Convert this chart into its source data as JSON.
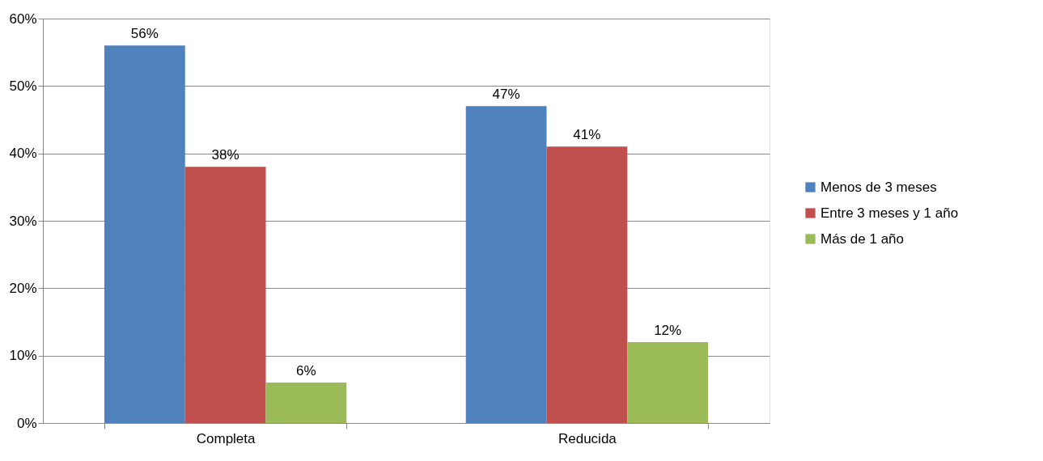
{
  "chart_data": {
    "type": "bar",
    "categories": [
      "Completa",
      "Reducida"
    ],
    "series": [
      {
        "name": "Menos de 3 meses",
        "color": "#4f81bd",
        "values": [
          56,
          47
        ],
        "value_labels": [
          "56%",
          "47%"
        ]
      },
      {
        "name": "Entre 3 meses y  1 año",
        "color": "#c0504d",
        "values": [
          38,
          41
        ],
        "value_labels": [
          "38%",
          "41%"
        ]
      },
      {
        "name": "Más de 1 año",
        "color": "#9bbb59",
        "values": [
          6,
          12
        ],
        "value_labels": [
          "6%",
          "12%"
        ]
      }
    ],
    "ylim": [
      0,
      60
    ],
    "yticks": [
      {
        "value": 0,
        "label": "0%"
      },
      {
        "value": 10,
        "label": "10%"
      },
      {
        "value": 20,
        "label": "20%"
      },
      {
        "value": 30,
        "label": "30%"
      },
      {
        "value": 40,
        "label": "40%"
      },
      {
        "value": 50,
        "label": "50%"
      },
      {
        "value": 60,
        "label": "60%"
      }
    ],
    "grid": "y",
    "legend": "right"
  }
}
